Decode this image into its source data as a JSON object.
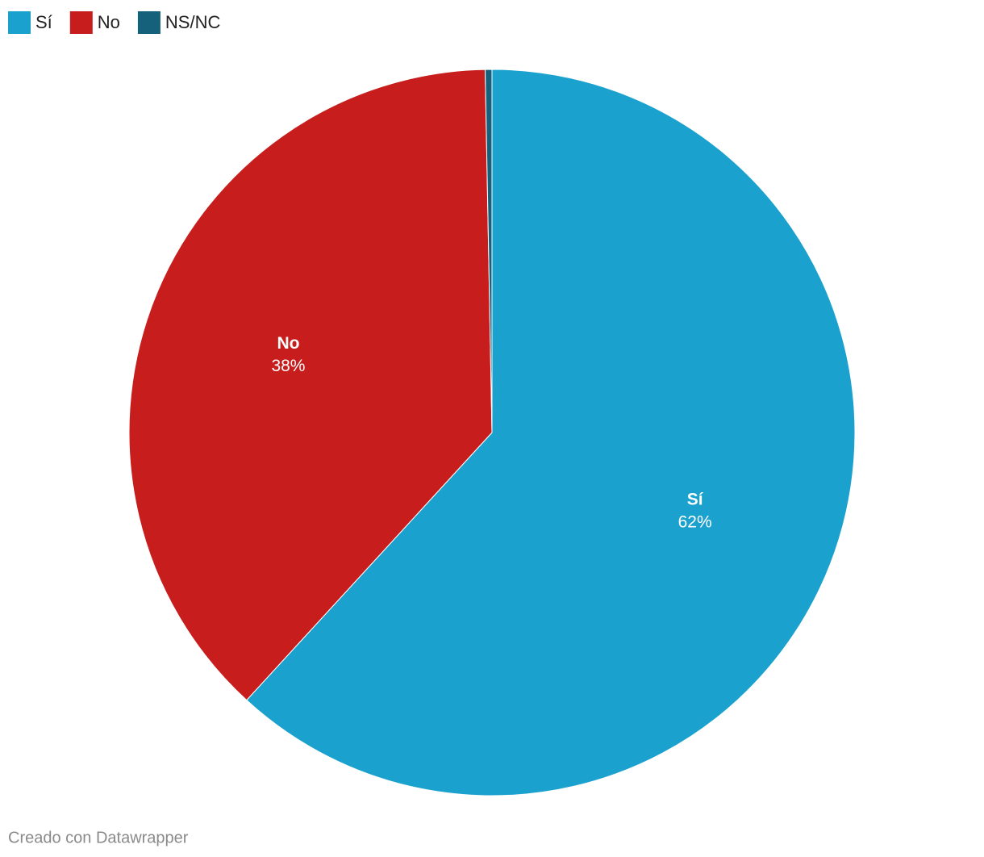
{
  "chart_data": {
    "type": "pie",
    "categories": [
      "Sí",
      "No",
      "NS/NC"
    ],
    "values": [
      62,
      38,
      0.3
    ],
    "value_labels": [
      "62%",
      "38%",
      null
    ],
    "colors": [
      "#1aa1cd",
      "#c71e1d",
      "#15607a"
    ],
    "legend": "top-left",
    "credit": "Creado con Datawrapper"
  }
}
